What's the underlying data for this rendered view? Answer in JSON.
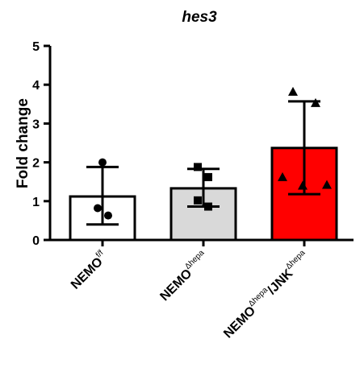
{
  "chart_data": {
    "type": "bar",
    "title": "hes3",
    "ylabel": "Fold change",
    "xlabel": "",
    "ylim": [
      0,
      5
    ],
    "yticks": [
      "0",
      "1",
      "2",
      "3",
      "4",
      "5"
    ],
    "grid": false,
    "categories": [
      {
        "base": "NEMO",
        "sup": "f/f"
      },
      {
        "base": "NEMO",
        "sup": "Δhepa"
      },
      {
        "base": "NEMO",
        "sup": "Δhepa",
        "mid": "/JNK",
        "sup2": "Δhepa"
      }
    ],
    "values": [
      1.12,
      1.33,
      2.37
    ],
    "error_upper": [
      1.88,
      1.83,
      3.57
    ],
    "error_lower": [
      0.4,
      0.86,
      1.18
    ],
    "fill_colors": [
      "#ffffff",
      "#d9d9d9",
      "#ff0000"
    ],
    "markers": [
      "circle",
      "square",
      "triangle"
    ],
    "points": [
      [
        2.0,
        0.82,
        0.63
      ],
      [
        1.88,
        1.62,
        1.02,
        0.86
      ],
      [
        3.82,
        3.53,
        1.62,
        1.4,
        1.42
      ]
    ]
  }
}
